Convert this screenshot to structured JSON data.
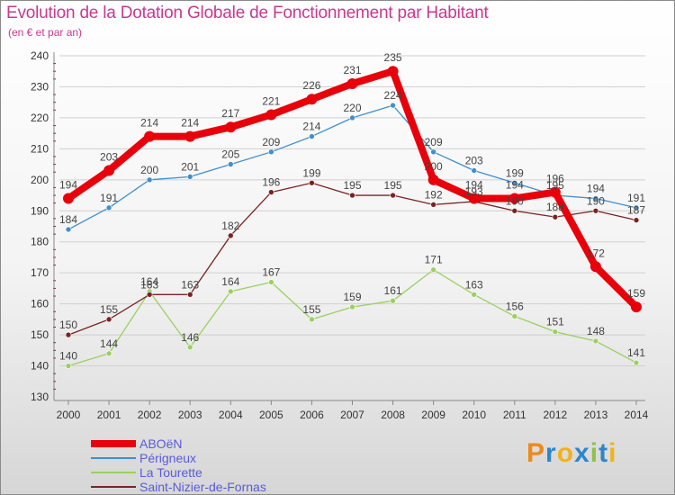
{
  "header": {
    "title": "Evolution de la Dotation Globale de Fonctionnement par Habitant",
    "subtitle": "(en € et par an)"
  },
  "logo": {
    "letters": [
      "P",
      "r",
      "o",
      "x",
      "i",
      "t",
      "i"
    ],
    "colors": [
      "#ee8a1a",
      "#2e86c8",
      "#f2b21c",
      "#2e86c8",
      "#8fc24a",
      "#2e86c8",
      "#f2b21c"
    ]
  },
  "colors": {
    "axis": "#888888",
    "grid": "#cfcfcf",
    "tick_text": "#333333",
    "point_label": "#444444",
    "minor_tick": "#cc0000"
  },
  "chart_data": {
    "type": "line",
    "title": "Evolution de la Dotation Globale de Fonctionnement par Habitant",
    "subtitle": "(en € et par an)",
    "xlabel": "",
    "ylabel": "",
    "x": [
      2000,
      2001,
      2002,
      2003,
      2004,
      2005,
      2006,
      2007,
      2008,
      2009,
      2010,
      2011,
      2012,
      2013,
      2014
    ],
    "ylim": [
      130,
      240
    ],
    "yticks": [
      130,
      140,
      150,
      160,
      170,
      180,
      190,
      200,
      210,
      220,
      230,
      240
    ],
    "grid": true,
    "legend_position": "bottom-left",
    "series": [
      {
        "name": "ABOëN",
        "color": "#e8000b",
        "width": 8,
        "marker": 6,
        "values": [
          194,
          203,
          214,
          214,
          217,
          221,
          226,
          231,
          235,
          200,
          194,
          194,
          196,
          172,
          159
        ]
      },
      {
        "name": "Périgneux",
        "color": "#3f8fcf",
        "width": 1.3,
        "marker": 3,
        "values": [
          184,
          191,
          200,
          201,
          205,
          209,
          214,
          220,
          224,
          209,
          203,
          199,
          195,
          194,
          191
        ]
      },
      {
        "name": "La Tourette",
        "color": "#9ad060",
        "width": 1.3,
        "marker": 3,
        "values": [
          140,
          144,
          164,
          146,
          164,
          167,
          155,
          159,
          161,
          171,
          163,
          156,
          151,
          148,
          141
        ]
      },
      {
        "name": "Saint-Nizier-de-Fornas",
        "color": "#7a2323",
        "width": 1.3,
        "marker": 3,
        "values": [
          150,
          155,
          163,
          163,
          182,
          196,
          199,
          195,
          195,
          192,
          193,
          190,
          188,
          190,
          187
        ]
      }
    ]
  }
}
